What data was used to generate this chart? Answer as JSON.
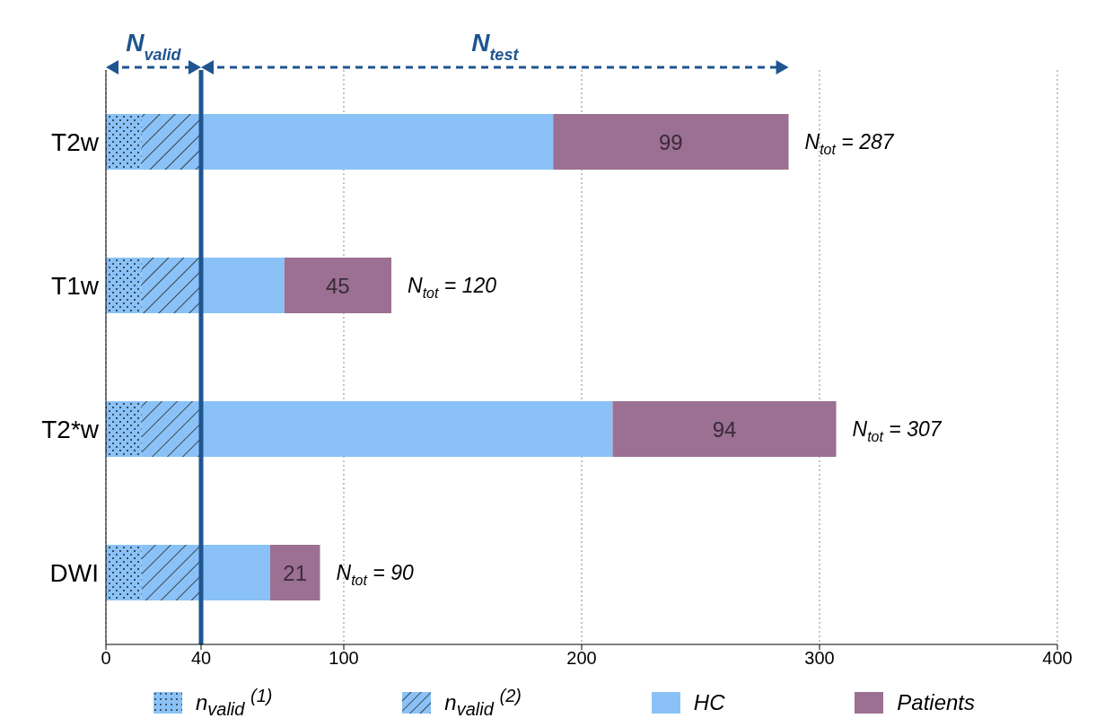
{
  "chart_data": {
    "type": "bar",
    "orientation": "horizontal",
    "stacked": true,
    "categories": [
      "T2w",
      "T1w",
      "T2*w",
      "DWI"
    ],
    "series": [
      {
        "name": "n$_{valid}$ $^{(1)}$",
        "color": "#8ac2f7",
        "values": [
          15,
          15,
          15,
          15
        ]
      },
      {
        "name": "n$_{valid}$ $^{(2)}$",
        "color": "#8ac2f7",
        "values": [
          25,
          25,
          25,
          25
        ]
      },
      {
        "name": "HC",
        "color": "#8ac2f7",
        "values": [
          148,
          35,
          173,
          29
        ]
      },
      {
        "name": "Patients",
        "color": "#9b7092",
        "values": [
          99,
          45,
          94,
          21
        ],
        "value_labels": [
          "99",
          "45",
          "94",
          "21"
        ]
      }
    ],
    "xlim": [
      0,
      400
    ],
    "xticks": [
      0,
      40,
      100,
      200,
      300,
      400
    ],
    "grid": "x",
    "legend": "bottom",
    "ref_lines": [
      {
        "axis": "x",
        "value": 40,
        "color": "#1f5590"
      }
    ],
    "annotations": [
      "N$_{valid}$",
      "N$_{test}$",
      {
        "text": "N$_{tot}$ = 287",
        "x": 287,
        "y": "T2w"
      },
      {
        "text": "N$_{tot}$ = 120",
        "x": 120,
        "y": "T1w"
      },
      {
        "text": "N$_{tot}$ = 307",
        "x": 307,
        "y": "T2*w"
      },
      {
        "text": "N$_{tot}$ = 90",
        "x": 90,
        "y": "DWI"
      }
    ]
  }
}
